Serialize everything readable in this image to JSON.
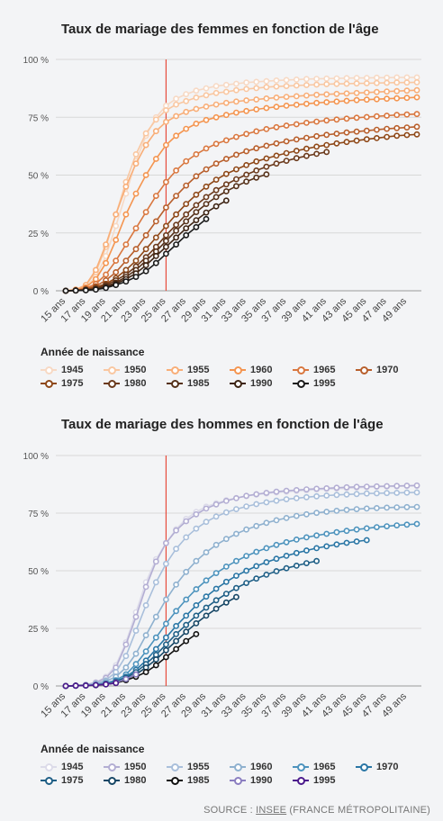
{
  "source": {
    "prefix": "SOURCE : ",
    "link": "INSEE",
    "suffix": " (FRANCE MÉTROPOLITAINE)"
  },
  "chart_data": [
    {
      "type": "line",
      "title": "Taux de mariage des femmes en fonction de l'âge",
      "ylim": [
        0,
        100
      ],
      "y_ticks": [
        "0 %",
        "25 %",
        "50 %",
        "75 %",
        "100 %"
      ],
      "x": [
        15,
        16,
        17,
        18,
        19,
        20,
        21,
        22,
        23,
        24,
        25,
        26,
        27,
        28,
        29,
        30,
        31,
        32,
        33,
        34,
        35,
        36,
        37,
        38,
        39,
        40,
        41,
        42,
        43,
        44,
        45,
        46,
        47,
        48,
        49,
        50
      ],
      "x_tick_labels": [
        "15 ans",
        "17 ans",
        "19 ans",
        "21 ans",
        "23 ans",
        "25 ans",
        "27 ans",
        "29 ans",
        "31 ans",
        "33 ans",
        "35 ans",
        "37 ans",
        "39 ans",
        "41 ans",
        "43 ans",
        "45 ans",
        "47 ans",
        "49 ans"
      ],
      "reference_line_x": 25,
      "grid": true,
      "legend_title": "Année de naissance",
      "legend_position": "bottom",
      "series": [
        {
          "name": "1945",
          "color": "#f7d9c4",
          "values": [
            0,
            0.5,
            2,
            6,
            15,
            28,
            42,
            56,
            67,
            75,
            80,
            83,
            85,
            86.5,
            87.5,
            88.5,
            89,
            89.5,
            90,
            90.3,
            90.6,
            90.9,
            91.1,
            91.3,
            91.5,
            91.6,
            91.7,
            91.8,
            91.9,
            92,
            92,
            92.1,
            92.1,
            92.2,
            92.2,
            92.2
          ]
        },
        {
          "name": "1950",
          "color": "#f9c7a1",
          "values": [
            0,
            0.5,
            2.5,
            8,
            19,
            33,
            47,
            59,
            68,
            74,
            78,
            80.5,
            82,
            83.5,
            84.5,
            85.5,
            86,
            86.7,
            87.2,
            87.6,
            88,
            88.3,
            88.5,
            88.7,
            88.9,
            89.1,
            89.3,
            89.4,
            89.5,
            89.6,
            89.7,
            89.8,
            89.9,
            90,
            90,
            90.1
          ]
        },
        {
          "name": "1955",
          "color": "#f8ae78",
          "values": [
            0,
            0.5,
            2.5,
            9,
            20,
            33,
            45,
            55,
            63,
            69,
            73,
            75.5,
            77.3,
            78.6,
            79.6,
            80.5,
            81.2,
            81.8,
            82.3,
            82.7,
            83.1,
            83.5,
            83.8,
            84.1,
            84.4,
            84.7,
            84.9,
            85.1,
            85.3,
            85.5,
            85.7,
            85.9,
            86.1,
            86.3,
            86.5,
            86.7
          ]
        },
        {
          "name": "1960",
          "color": "#f49550",
          "values": [
            0,
            0.3,
            1.5,
            5,
            12,
            22,
            33,
            42,
            50,
            57,
            63,
            67,
            70,
            72.2,
            73.8,
            75,
            76,
            77,
            77.7,
            78.4,
            79,
            79.5,
            80,
            80.4,
            80.8,
            81.2,
            81.5,
            81.8,
            82.1,
            82.4,
            82.6,
            82.8,
            83,
            83.2,
            83.4,
            83.6
          ]
        },
        {
          "name": "1965",
          "color": "#d9773f",
          "values": [
            0,
            0.2,
            1,
            3,
            7,
            13,
            20,
            27,
            34,
            41,
            47,
            52,
            56,
            59,
            61.5,
            63.5,
            65,
            66.5,
            67.8,
            68.9,
            69.9,
            70.7,
            71.4,
            72,
            72.6,
            73.1,
            73.6,
            74,
            74.4,
            74.8,
            75.1,
            75.4,
            75.7,
            76,
            76.2,
            76.4
          ]
        },
        {
          "name": "1970",
          "color": "#b85f2c",
          "values": [
            0,
            0.2,
            0.8,
            2,
            4.5,
            8,
            13,
            18,
            24,
            30,
            36,
            41,
            45.5,
            49.5,
            52.5,
            55,
            57,
            58.8,
            60.3,
            61.6,
            62.7,
            63.7,
            64.6,
            65.4,
            66.1,
            66.8,
            67.4,
            67.9,
            68.4,
            68.8,
            69.2,
            69.6,
            70,
            70.3,
            70.6,
            70.9
          ]
        },
        {
          "name": "1975",
          "color": "#8e4818",
          "values": [
            0,
            0.1,
            0.5,
            1.5,
            3,
            5.5,
            9,
            13,
            18,
            23,
            28,
            33,
            37.5,
            41.5,
            45,
            48,
            50.5,
            52.5,
            54.3,
            55.9,
            57.2,
            58.4,
            59.5,
            60.5,
            61.4,
            62.3,
            63,
            63.7,
            64.3,
            64.9,
            65.5,
            66,
            66.5,
            67,
            67.3,
            67.6
          ]
        },
        {
          "name": "1980",
          "color": "#6b3a1c",
          "values": [
            0,
            0.1,
            0.4,
            1,
            2.5,
            4.5,
            7,
            10.5,
            14.5,
            19,
            24,
            28.5,
            33,
            37,
            40.5,
            43.5,
            46,
            48.2,
            50.2,
            52,
            53.6,
            55,
            56.2,
            57.3,
            58.3,
            59.2,
            60,
            null,
            null,
            null,
            null,
            null,
            null,
            null,
            null,
            null
          ]
        },
        {
          "name": "1985",
          "color": "#55311a",
          "values": [
            0,
            0.1,
            0.3,
            0.8,
            2,
            3.5,
            6,
            9,
            13,
            17,
            21.5,
            26,
            30,
            34,
            37.5,
            40.5,
            43,
            45.2,
            47.2,
            48.9,
            50.3,
            null,
            null,
            null,
            null,
            null,
            null,
            null,
            null,
            null,
            null,
            null,
            null,
            null,
            null,
            null
          ]
        },
        {
          "name": "1990",
          "color": "#3d2414",
          "values": [
            0,
            0.1,
            0.3,
            0.6,
            1.5,
            3,
            5,
            7.5,
            11,
            15,
            19,
            23,
            27,
            30.5,
            33.8,
            36.5,
            39,
            null,
            null,
            null,
            null,
            null,
            null,
            null,
            null,
            null,
            null,
            null,
            null,
            null,
            null,
            null,
            null,
            null,
            null,
            null
          ]
        },
        {
          "name": "1995",
          "color": "#1a1a1a",
          "values": [
            0,
            0.1,
            0.2,
            0.5,
            1.2,
            2.5,
            4,
            6,
            8.5,
            12,
            16,
            20,
            24,
            27.5,
            31,
            null,
            null,
            null,
            null,
            null,
            null,
            null,
            null,
            null,
            null,
            null,
            null,
            null,
            null,
            null,
            null,
            null,
            null,
            null,
            null,
            null
          ]
        }
      ]
    },
    {
      "type": "line",
      "title": "Taux de mariage des hommes en fonction de l'âge",
      "ylim": [
        0,
        100
      ],
      "y_ticks": [
        "0 %",
        "25 %",
        "50 %",
        "75 %",
        "100 %"
      ],
      "x": [
        15,
        16,
        17,
        18,
        19,
        20,
        21,
        22,
        23,
        24,
        25,
        26,
        27,
        28,
        29,
        30,
        31,
        32,
        33,
        34,
        35,
        36,
        37,
        38,
        39,
        40,
        41,
        42,
        43,
        44,
        45,
        46,
        47,
        48,
        49,
        50
      ],
      "x_tick_labels": [
        "15 ans",
        "17 ans",
        "19 ans",
        "21 ans",
        "23 ans",
        "25 ans",
        "27 ans",
        "29 ans",
        "31 ans",
        "33 ans",
        "35 ans",
        "37 ans",
        "39 ans",
        "41 ans",
        "43 ans",
        "45 ans",
        "47 ans",
        "49 ans"
      ],
      "reference_line_x": 25,
      "grid": true,
      "legend_title": "Année de naissance",
      "legend_position": "bottom",
      "series": [
        {
          "name": "1945",
          "color": "#dcdbe9",
          "values": [
            0,
            0.2,
            0.5,
            1.5,
            4,
            9,
            19,
            32,
            45,
            55,
            62,
            68,
            72.5,
            75.5,
            77.8,
            79.3,
            80.6,
            81.6,
            82.4,
            83,
            83.5,
            84,
            84.3,
            84.6,
            84.9,
            85.2,
            85.4,
            85.6,
            85.8,
            86,
            86.2,
            86.4,
            86.5,
            86.6,
            86.7,
            86.8
          ]
        },
        {
          "name": "1950",
          "color": "#b3aed3",
          "values": [
            0,
            0.2,
            0.5,
            1.5,
            3.5,
            8,
            18,
            30,
            43,
            54,
            62,
            67.5,
            71.5,
            74.5,
            77,
            78.8,
            80.3,
            81.5,
            82.5,
            83.2,
            83.8,
            84.3,
            84.7,
            85,
            85.3,
            85.6,
            85.8,
            86,
            86.2,
            86.4,
            86.5,
            86.6,
            86.7,
            86.8,
            86.9,
            87
          ]
        },
        {
          "name": "1955",
          "color": "#a9bfdb",
          "values": [
            0,
            0.1,
            0.4,
            1,
            2.5,
            6,
            13,
            24,
            35,
            45,
            53,
            59.5,
            64.5,
            68.3,
            71.2,
            73.5,
            75.3,
            76.7,
            77.9,
            78.9,
            79.7,
            80.4,
            81,
            81.5,
            81.9,
            82.3,
            82.6,
            82.9,
            83.1,
            83.3,
            83.5,
            83.6,
            83.7,
            83.8,
            83.9,
            84
          ]
        },
        {
          "name": "1960",
          "color": "#8fb1cf",
          "values": [
            0,
            0.1,
            0.3,
            0.8,
            2,
            4,
            8,
            14,
            22,
            30,
            37.5,
            44,
            49.5,
            54.2,
            58,
            61.2,
            63.8,
            66,
            67.9,
            69.4,
            70.8,
            71.9,
            72.9,
            73.8,
            74.5,
            75.1,
            75.6,
            76,
            76.4,
            76.7,
            77,
            77.2,
            77.4,
            77.5,
            77.6,
            77.7
          ]
        },
        {
          "name": "1965",
          "color": "#4d93bd",
          "values": [
            0,
            0.1,
            0.2,
            0.5,
            1.2,
            2.5,
            5,
            9.5,
            15,
            21,
            27,
            32.5,
            37.5,
            42,
            45.8,
            49,
            51.8,
            54.2,
            56.4,
            58.2,
            59.8,
            61.2,
            62.4,
            63.5,
            64.5,
            65.3,
            66,
            66.7,
            67.3,
            67.9,
            68.4,
            68.9,
            69.3,
            69.7,
            70,
            70.3
          ]
        },
        {
          "name": "1970",
          "color": "#2a76a5",
          "values": [
            0,
            0.1,
            0.2,
            0.4,
            1,
            2,
            4,
            7,
            11,
            16,
            21,
            26,
            30.5,
            35,
            38.8,
            42.2,
            45.2,
            47.8,
            50,
            52,
            53.7,
            55.2,
            56.5,
            57.7,
            58.8,
            59.8,
            60.6,
            61.4,
            62.1,
            62.7,
            63.3,
            null,
            null,
            null,
            null,
            null
          ]
        },
        {
          "name": "1975",
          "color": "#1f5f86",
          "values": [
            0,
            0.1,
            0.2,
            0.4,
            0.9,
            1.8,
            3.5,
            6,
            9.5,
            13.5,
            18,
            22.5,
            26.5,
            30.5,
            34,
            37.2,
            40,
            42.5,
            44.7,
            46.6,
            48.3,
            49.8,
            51.1,
            52.2,
            53.3,
            54.2,
            null,
            null,
            null,
            null,
            null,
            null,
            null,
            null,
            null,
            null
          ]
        },
        {
          "name": "1980",
          "color": "#174766",
          "values": [
            0,
            0.1,
            0.2,
            0.4,
            0.8,
            1.5,
            3,
            5,
            8,
            11.5,
            15.5,
            19.5,
            23.5,
            27.2,
            30.5,
            33.5,
            36.2,
            38.6,
            null,
            null,
            null,
            null,
            null,
            null,
            null,
            null,
            null,
            null,
            null,
            null,
            null,
            null,
            null,
            null,
            null,
            null
          ]
        },
        {
          "name": "1985",
          "color": "#111111",
          "values": [
            0,
            0.1,
            0.2,
            0.3,
            0.7,
            1.3,
            2.5,
            4,
            6,
            9,
            12.5,
            16,
            19.5,
            22.5,
            null,
            null,
            null,
            null,
            null,
            null,
            null,
            null,
            null,
            null,
            null,
            null,
            null,
            null,
            null,
            null,
            null,
            null,
            null,
            null,
            null,
            null
          ]
        },
        {
          "name": "1990",
          "color": "#8b7ec0",
          "values": [
            0,
            0.1,
            0.2,
            0.4,
            0.8,
            1.5,
            3,
            5,
            null,
            null,
            null,
            null,
            null,
            null,
            null,
            null,
            null,
            null,
            null,
            null,
            null,
            null,
            null,
            null,
            null,
            null,
            null,
            null,
            null,
            null,
            null,
            null,
            null,
            null,
            null,
            null
          ]
        },
        {
          "name": "1995",
          "color": "#4b1a8c",
          "values": [
            0,
            0.1,
            0.2,
            0.4,
            0.7,
            1.3,
            null,
            null,
            null,
            null,
            null,
            null,
            null,
            null,
            null,
            null,
            null,
            null,
            null,
            null,
            null,
            null,
            null,
            null,
            null,
            null,
            null,
            null,
            null,
            null,
            null,
            null,
            null,
            null,
            null,
            null
          ]
        }
      ]
    }
  ]
}
